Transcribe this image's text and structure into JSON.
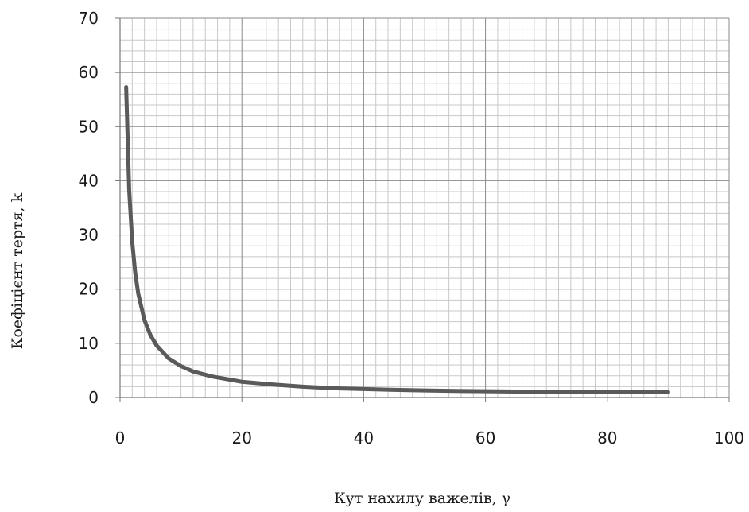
{
  "chart_data": {
    "type": "line",
    "title": "",
    "xlabel": "Кут нахилу важелів, γ",
    "ylabel": "Коефіцієнт тертя, k",
    "xlim": [
      0,
      100
    ],
    "ylim": [
      0,
      70
    ],
    "xticks": [
      "0",
      "20",
      "40",
      "60",
      "80",
      "100"
    ],
    "yticks": [
      "0",
      "10",
      "20",
      "30",
      "40",
      "50",
      "60",
      "70"
    ],
    "grid": true,
    "legend": "none",
    "line_color": "#5a5a5a",
    "series": [
      {
        "x": [
          1,
          1.5,
          2,
          2.5,
          3,
          4,
          5,
          6,
          8,
          10,
          12,
          15,
          20,
          25,
          30,
          35,
          40,
          45,
          50,
          55,
          60,
          65,
          70,
          75,
          80,
          85,
          90
        ],
        "y": [
          57.3,
          38.2,
          28.7,
          22.9,
          19.1,
          14.3,
          11.5,
          9.6,
          7.2,
          5.8,
          4.8,
          3.9,
          2.9,
          2.4,
          2.0,
          1.7,
          1.56,
          1.41,
          1.31,
          1.22,
          1.15,
          1.1,
          1.06,
          1.04,
          1.02,
          1.0,
          1.0
        ]
      }
    ]
  }
}
